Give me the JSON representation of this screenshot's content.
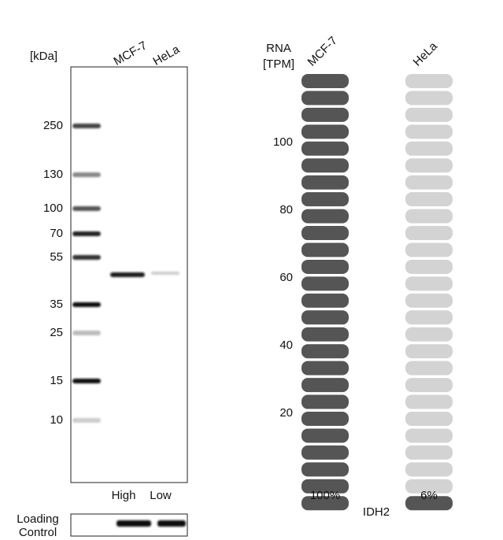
{
  "blot": {
    "unit_label": "[kDa]",
    "lanes": [
      "MCF-7",
      "HeLa"
    ],
    "markers": [
      "250",
      "130",
      "100",
      "70",
      "55",
      "35",
      "25",
      "15",
      "10"
    ],
    "levels": [
      "High",
      "Low"
    ],
    "loading_control": [
      "Loading",
      "Control"
    ]
  },
  "rna": {
    "axis_label": [
      "RNA",
      "[TPM]"
    ],
    "lanes": [
      "MCF-7",
      "HeLa"
    ],
    "yticks": [
      20,
      40,
      60,
      80,
      100
    ],
    "values": [
      100,
      6
    ],
    "value_labels": [
      "100%",
      "6%"
    ],
    "gene": "IDH2",
    "colors": {
      "filled": "#555555",
      "empty": "#d3d3d3"
    }
  }
}
